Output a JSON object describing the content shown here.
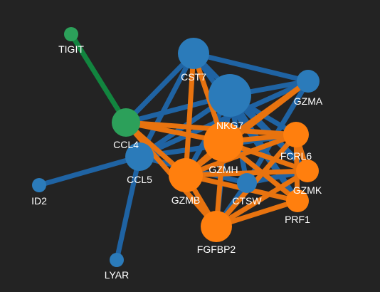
{
  "colors": {
    "background": "#232323",
    "blue_node": "#2b7bba",
    "blue_edge": "#1f63a3",
    "orange_node": "#ff7f0e",
    "orange_edge": "#e8730f",
    "green_node": "#2ca05a",
    "green_edge": "#12853f"
  },
  "nodes": [
    {
      "id": "TIGIT",
      "label": "TIGIT",
      "group": "green"
    },
    {
      "id": "CST7",
      "label": "CST7",
      "group": "blue"
    },
    {
      "id": "NKG7",
      "label": "NKG7",
      "group": "blue"
    },
    {
      "id": "GZMA",
      "label": "GZMA",
      "group": "blue"
    },
    {
      "id": "CCL4",
      "label": "CCL4",
      "group": "green"
    },
    {
      "id": "GZMH",
      "label": "GZMH",
      "group": "orange"
    },
    {
      "id": "FCRL6",
      "label": "FCRL6",
      "group": "orange"
    },
    {
      "id": "CCL5",
      "label": "CCL5",
      "group": "blue"
    },
    {
      "id": "GZMK",
      "label": "GZMK",
      "group": "orange"
    },
    {
      "id": "ID2",
      "label": "ID2",
      "group": "blue"
    },
    {
      "id": "GZMB",
      "label": "GZMB",
      "group": "orange"
    },
    {
      "id": "CTSW",
      "label": "CTSW",
      "group": "blue"
    },
    {
      "id": "PRF1",
      "label": "PRF1",
      "group": "orange"
    },
    {
      "id": "FGFBP2",
      "label": "FGFBP2",
      "group": "orange"
    },
    {
      "id": "LYAR",
      "label": "LYAR",
      "group": "blue"
    }
  ],
  "edges": [
    {
      "source": "TIGIT",
      "target": "CCL4",
      "color": "green"
    },
    {
      "source": "CST7",
      "target": "GZMA",
      "color": "blue"
    },
    {
      "source": "CST7",
      "target": "CCL4",
      "color": "blue"
    },
    {
      "source": "CST7",
      "target": "CCL5",
      "color": "blue"
    },
    {
      "source": "CST7",
      "target": "GZMK",
      "color": "blue"
    },
    {
      "source": "CST7",
      "target": "PRF1",
      "color": "blue"
    },
    {
      "source": "NKG7",
      "target": "GZMA",
      "color": "blue"
    },
    {
      "source": "NKG7",
      "target": "CCL4",
      "color": "blue"
    },
    {
      "source": "NKG7",
      "target": "CCL5",
      "color": "blue"
    },
    {
      "source": "NKG7",
      "target": "GZMK",
      "color": "blue"
    },
    {
      "source": "NKG7",
      "target": "PRF1",
      "color": "blue"
    },
    {
      "source": "NKG7",
      "target": "CTSW",
      "color": "blue"
    },
    {
      "source": "NKG7",
      "target": "FCRL6",
      "color": "blue"
    },
    {
      "source": "NKG7",
      "target": "GZMB",
      "color": "blue"
    },
    {
      "source": "NKG7",
      "target": "FGFBP2",
      "color": "blue"
    },
    {
      "source": "GZMA",
      "target": "CTSW",
      "color": "blue"
    },
    {
      "source": "GZMA",
      "target": "CCL5",
      "color": "blue"
    },
    {
      "source": "CCL5",
      "target": "ID2",
      "color": "blue"
    },
    {
      "source": "CCL5",
      "target": "LYAR",
      "color": "blue"
    },
    {
      "source": "CCL5",
      "target": "FCRL6",
      "color": "blue"
    },
    {
      "source": "CCL5",
      "target": "CTSW",
      "color": "blue"
    },
    {
      "source": "CTSW",
      "target": "GZMK",
      "color": "blue"
    },
    {
      "source": "CTSW",
      "target": "FGFBP2",
      "color": "blue"
    },
    {
      "source": "CST7",
      "target": "GZMB",
      "color": "orange"
    },
    {
      "source": "CST7",
      "target": "GZMH",
      "color": "orange"
    },
    {
      "source": "GZMA",
      "target": "GZMH",
      "color": "orange"
    },
    {
      "source": "GZMA",
      "target": "GZMB",
      "color": "orange"
    },
    {
      "source": "CCL4",
      "target": "GZMH",
      "color": "orange"
    },
    {
      "source": "CCL4",
      "target": "GZMB",
      "color": "orange"
    },
    {
      "source": "CCL4",
      "target": "FCRL6",
      "color": "orange"
    },
    {
      "source": "CCL4",
      "target": "FGFBP2",
      "color": "orange"
    },
    {
      "source": "GZMH",
      "target": "GZMB",
      "color": "orange"
    },
    {
      "source": "GZMH",
      "target": "FCRL6",
      "color": "orange"
    },
    {
      "source": "GZMH",
      "target": "GZMK",
      "color": "orange"
    },
    {
      "source": "GZMH",
      "target": "PRF1",
      "color": "orange"
    },
    {
      "source": "GZMH",
      "target": "FGFBP2",
      "color": "orange"
    },
    {
      "source": "GZMB",
      "target": "FCRL6",
      "color": "orange"
    },
    {
      "source": "GZMB",
      "target": "GZMK",
      "color": "orange"
    },
    {
      "source": "GZMB",
      "target": "PRF1",
      "color": "orange"
    },
    {
      "source": "GZMB",
      "target": "FGFBP2",
      "color": "orange"
    },
    {
      "source": "FGFBP2",
      "target": "PRF1",
      "color": "orange"
    },
    {
      "source": "FGFBP2",
      "target": "FCRL6",
      "color": "orange"
    },
    {
      "source": "FGFBP2",
      "target": "GZMK",
      "color": "orange"
    },
    {
      "source": "PRF1",
      "target": "FCRL6",
      "color": "orange"
    },
    {
      "source": "GZMK",
      "target": "FCRL6",
      "color": "orange"
    }
  ]
}
